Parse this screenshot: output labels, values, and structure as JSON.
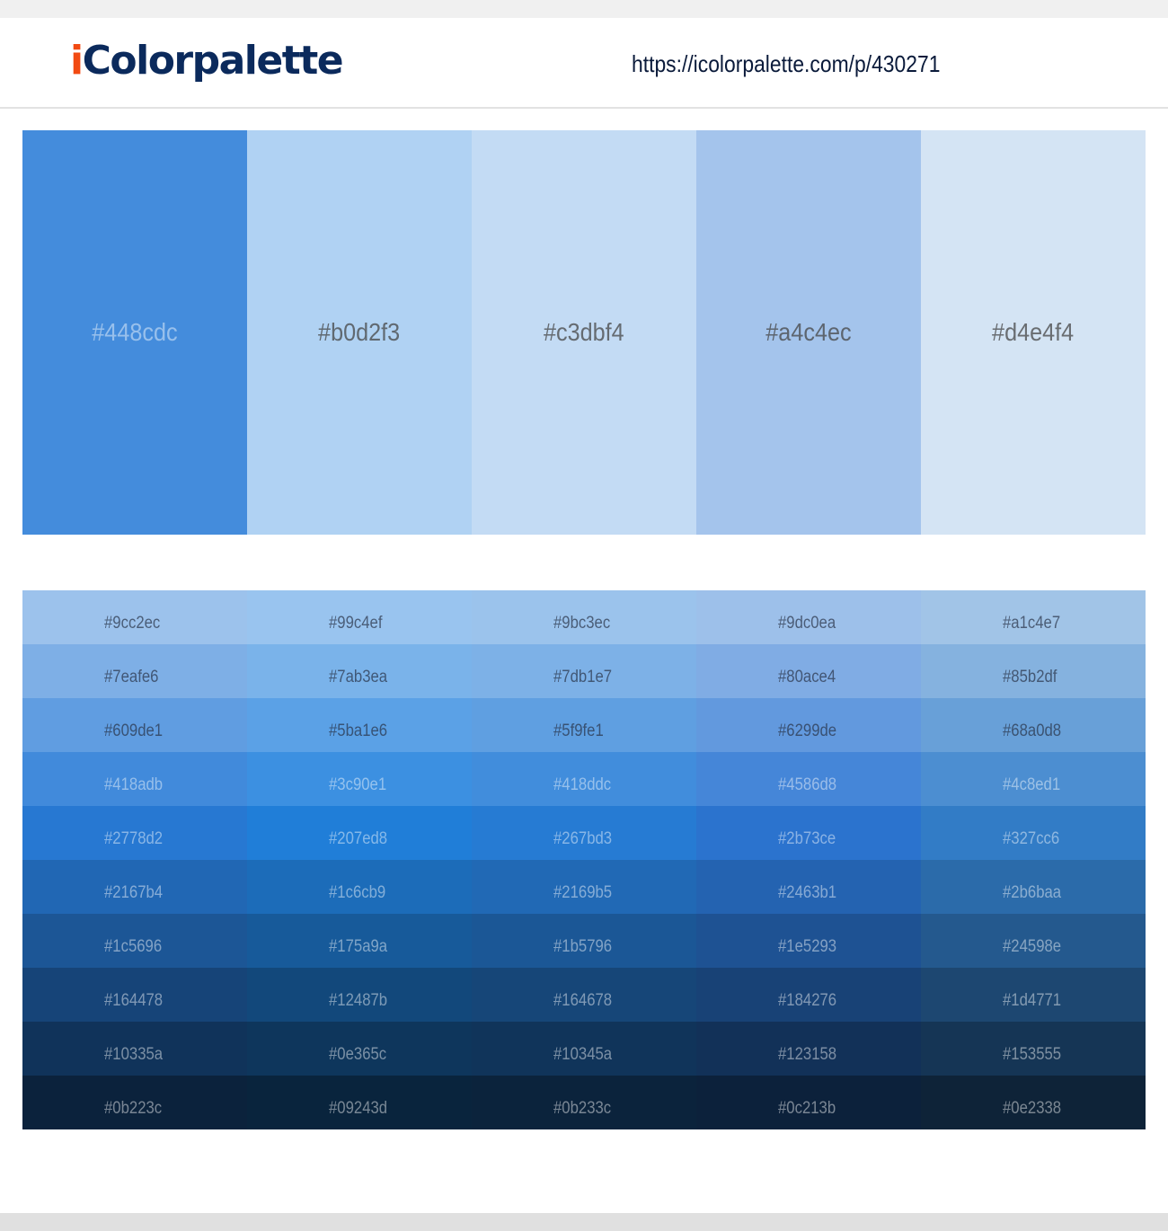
{
  "header": {
    "logo_prefix": "i",
    "logo_rest": "Colorpalette",
    "url": "https://icolorpalette.com/p/430271"
  },
  "colors": {
    "logo_i": "#f24a12",
    "logo_text": "#0b2a5c"
  },
  "palette": [
    "#448cdc",
    "#b0d2f3",
    "#c3dbf4",
    "#a4c4ec",
    "#d4e4f4"
  ],
  "shades": [
    [
      "#9cc2ec",
      "#99c4ef",
      "#9bc3ec",
      "#9dc0ea",
      "#a1c4e7"
    ],
    [
      "#7eafe6",
      "#7ab3ea",
      "#7db1e7",
      "#80ace4",
      "#85b2df"
    ],
    [
      "#609de1",
      "#5ba1e6",
      "#5f9fe1",
      "#6299de",
      "#68a0d8"
    ],
    [
      "#418adb",
      "#3c90e1",
      "#418ddc",
      "#4586d8",
      "#4c8ed1"
    ],
    [
      "#2778d2",
      "#207ed8",
      "#267bd3",
      "#2b73ce",
      "#327cc6"
    ],
    [
      "#2167b4",
      "#1c6cb9",
      "#2169b5",
      "#2463b1",
      "#2b6baa"
    ],
    [
      "#1c5696",
      "#175a9a",
      "#1b5796",
      "#1e5293",
      "#24598e"
    ],
    [
      "#164478",
      "#12487b",
      "#164678",
      "#184276",
      "#1d4771"
    ],
    [
      "#10335a",
      "#0e365c",
      "#10345a",
      "#123158",
      "#153555"
    ],
    [
      "#0b223c",
      "#09243d",
      "#0b233c",
      "#0c213b",
      "#0e2338"
    ]
  ]
}
